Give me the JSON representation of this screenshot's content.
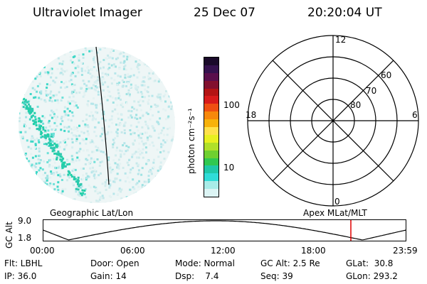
{
  "header": {
    "title": "Ultraviolet Imager",
    "date": "25 Dec 07",
    "time": "20:20:04 UT"
  },
  "colorbar": {
    "label": "photon cm⁻²s⁻¹",
    "ticks": [
      "100",
      "10"
    ],
    "colors": [
      "#1a0a2a",
      "#35124e",
      "#5a0f4c",
      "#82102e",
      "#b31414",
      "#d81b1b",
      "#ef4f12",
      "#f7880b",
      "#f7b20a",
      "#ffe14a",
      "#e8f020",
      "#b0e02a",
      "#6fd030",
      "#30c850",
      "#20c8a8",
      "#30dcd8",
      "#a8ece8",
      "#dcf4f4"
    ]
  },
  "polar": {
    "mlt_labels": {
      "top": "12",
      "left": "18",
      "right": "6",
      "bottom": "0"
    },
    "lat_labels": [
      "60",
      "70",
      "80"
    ]
  },
  "timeline": {
    "left_label": "Geographic Lat/Lon",
    "right_label": "Apex MLat/MLT",
    "axis_title": "GC Alt",
    "y_ticks": [
      "9.0",
      "1.8"
    ],
    "x_ticks": [
      "00:00",
      "06:00",
      "12:00",
      "18:00",
      "23:59"
    ],
    "marker_color": "#e00000"
  },
  "info": {
    "flt": "Flt: LBHL",
    "ip": "IP: 36.0",
    "door": "Door: Open",
    "gain": "Gain: 14",
    "mode": "Mode: Normal",
    "dsp": "Dsp:    7.4",
    "gcalt": "GC Alt: 2.5 Re",
    "seq": "Seq: 39",
    "glat": "GLat:  30.8",
    "glon": "GLon: 293.2"
  }
}
